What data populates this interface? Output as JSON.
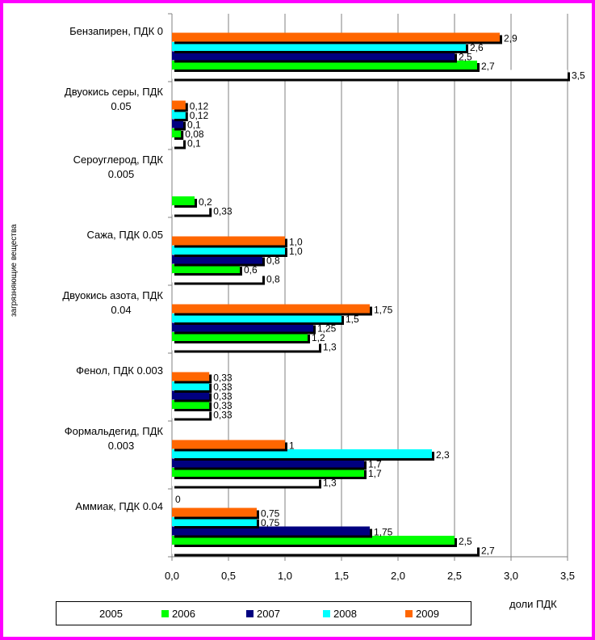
{
  "chart_data": {
    "type": "bar",
    "orientation": "horizontal",
    "categories": [
      "Бензапирен, ПДК 0",
      "Двуокись серы, ПДК 0.05",
      "Сероуглерод, ПДК 0.005",
      "Сажа, ПДК 0.05",
      "Двуокись азота, ПДК 0.04",
      "Фенол, ПДК 0.003",
      "Формальдегид, ПДК 0.003",
      "Аммиак, ПДК 0.04"
    ],
    "series": [
      {
        "name": "2005",
        "color": "#ffffff",
        "values": [
          3.5,
          0.1,
          0.33,
          0.8,
          1.3,
          0.33,
          1.3,
          2.7
        ]
      },
      {
        "name": "2006",
        "color": "#00ff00",
        "values": [
          2.7,
          0.08,
          0.2,
          0.6,
          1.2,
          0.33,
          1.7,
          2.5
        ]
      },
      {
        "name": "2007",
        "color": "#000080",
        "values": [
          2.5,
          0.1,
          null,
          0.8,
          1.25,
          0.33,
          1.7,
          1.75
        ]
      },
      {
        "name": "2008",
        "color": "#00ffff",
        "values": [
          2.6,
          0.12,
          null,
          1.0,
          1.5,
          0.33,
          2.3,
          0.75
        ]
      },
      {
        "name": "2009",
        "color": "#ff6600",
        "values": [
          2.9,
          0.12,
          null,
          1.0,
          1.75,
          0.33,
          1.0,
          0.75
        ]
      }
    ],
    "data_labels": [
      [
        "3,5",
        "0,1",
        "0,33",
        "0,8",
        "1,3",
        "0,33",
        "1,3",
        "2,7"
      ],
      [
        "2,7",
        "0,08",
        "0,2",
        "0,6",
        "1,2",
        "0,33",
        "1,7",
        "2,5"
      ],
      [
        "2,5",
        "0,1",
        "",
        "0,8",
        "1,25",
        "0,33",
        "1,7",
        "1,75"
      ],
      [
        "2,6",
        "0,12",
        "",
        "1,0",
        "1,5",
        "0,33",
        "2,3",
        "0,75"
      ],
      [
        "2,9",
        "0,12",
        "",
        "1,0",
        "1,75",
        "0,33",
        "1",
        "0,75"
      ]
    ],
    "annotations": [
      "0"
    ],
    "x_ticks": [
      "0,0",
      "0,5",
      "1,0",
      "1,5",
      "2,0",
      "2,5",
      "3,0",
      "3,5"
    ],
    "xlim": [
      0,
      3.5
    ],
    "xlabel": "доли ПДК",
    "ylabel": "загрязняющие вещества",
    "grid": "vertical",
    "legend_position": "bottom"
  },
  "colors": {
    "frame": "#ff00ff",
    "grid": "#808080"
  }
}
